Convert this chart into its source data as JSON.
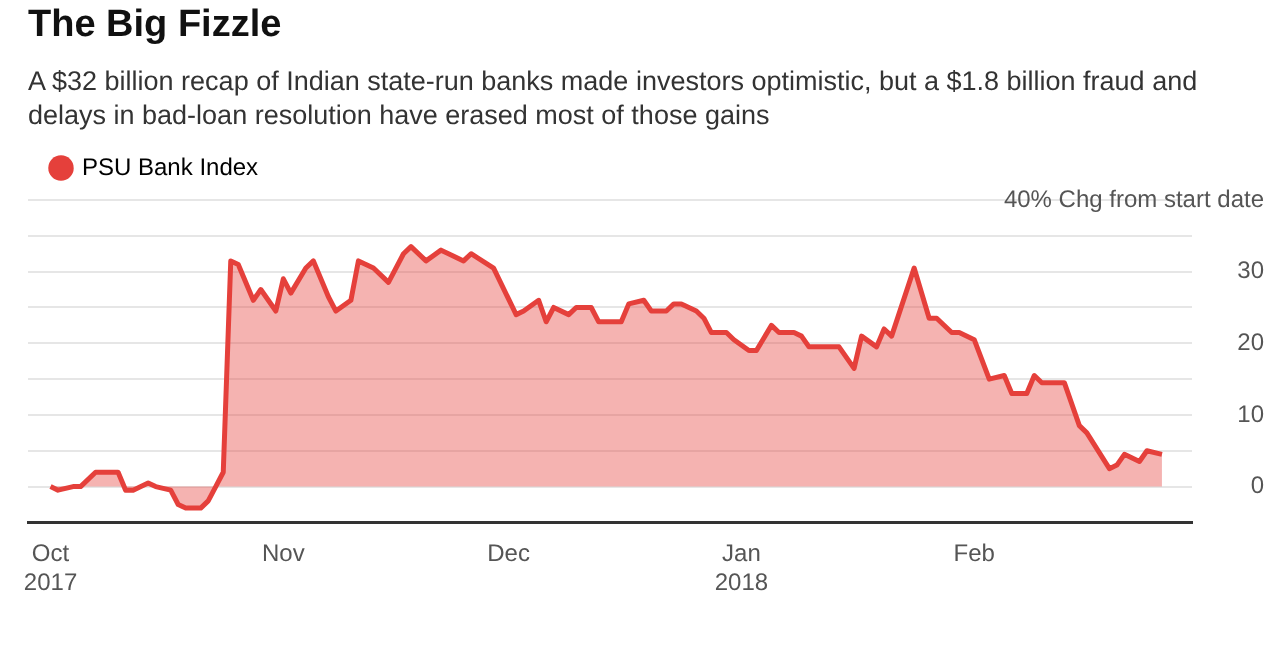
{
  "chart_data": {
    "type": "area",
    "title": "The Big Fizzle",
    "subtitle": "A $32 billion recap of Indian state-run banks made investors optimistic, but a $1.8 billion fraud and delays in bad-loan resolution have erased most of those gains",
    "x": [
      "2017-10-01",
      "2017-10-02",
      "2017-10-04",
      "2017-10-05",
      "2017-10-07",
      "2017-10-10",
      "2017-10-11",
      "2017-10-12",
      "2017-10-14",
      "2017-10-15",
      "2017-10-17",
      "2017-10-18",
      "2017-10-19",
      "2017-10-21",
      "2017-10-22",
      "2017-10-23",
      "2017-10-24",
      "2017-10-25",
      "2017-10-26",
      "2017-10-28",
      "2017-10-29",
      "2017-10-31",
      "2017-11-01",
      "2017-11-02",
      "2017-11-04",
      "2017-11-05",
      "2017-11-07",
      "2017-11-08",
      "2017-11-10",
      "2017-11-11",
      "2017-11-13",
      "2017-11-15",
      "2017-11-17",
      "2017-11-18",
      "2017-11-20",
      "2017-11-22",
      "2017-11-25",
      "2017-11-26",
      "2017-11-29",
      "2017-12-02",
      "2017-12-03",
      "2017-12-05",
      "2017-12-06",
      "2017-12-07",
      "2017-12-09",
      "2017-12-10",
      "2017-12-12",
      "2017-12-13",
      "2017-12-14",
      "2017-12-16",
      "2017-12-17",
      "2017-12-19",
      "2017-12-20",
      "2017-12-22",
      "2017-12-23",
      "2017-12-24",
      "2017-12-26",
      "2017-12-27",
      "2017-12-28",
      "2017-12-30",
      "2017-12-31",
      "2018-01-02",
      "2018-01-03",
      "2018-01-05",
      "2018-01-06",
      "2018-01-08",
      "2018-01-09",
      "2018-01-10",
      "2018-01-12",
      "2018-01-14",
      "2018-01-16",
      "2018-01-17",
      "2018-01-19",
      "2018-01-20",
      "2018-01-21",
      "2018-01-24",
      "2018-01-26",
      "2018-01-27",
      "2018-01-29",
      "2018-01-30",
      "2018-02-01",
      "2018-02-03",
      "2018-02-05",
      "2018-02-06",
      "2018-02-08",
      "2018-02-09",
      "2018-02-10",
      "2018-02-12",
      "2018-02-13",
      "2018-02-15",
      "2018-02-16",
      "2018-02-19",
      "2018-02-20",
      "2018-02-21",
      "2018-02-23",
      "2018-02-24",
      "2018-02-26"
    ],
    "series": [
      {
        "name": "PSU Bank Index",
        "color": "#e5403b",
        "values": [
          0,
          -0.5,
          0,
          0,
          2,
          2,
          -0.5,
          -0.5,
          0.5,
          0,
          -0.5,
          -2.5,
          -3,
          -3,
          -2,
          0,
          2,
          31.5,
          31,
          26,
          27.5,
          24.5,
          29,
          27,
          30.5,
          31.5,
          26.5,
          24.5,
          26,
          31.5,
          30.5,
          28.5,
          32.5,
          33.5,
          31.5,
          33,
          31.5,
          32.5,
          30.5,
          24,
          24.5,
          26,
          23,
          25,
          24,
          25,
          25,
          23,
          23,
          23,
          25.5,
          26,
          24.5,
          24.5,
          25.5,
          25.5,
          24.5,
          23.5,
          21.5,
          21.5,
          20.5,
          19,
          19,
          22.5,
          21.5,
          21.5,
          21,
          19.5,
          19.5,
          19.5,
          16.5,
          21,
          19.5,
          22,
          21,
          30.5,
          23.5,
          23.5,
          21.5,
          21.5,
          20.5,
          15,
          15.5,
          13,
          13,
          15.5,
          14.5,
          14.5,
          14.5,
          8.5,
          7.5,
          2.5,
          3,
          4.5,
          3.5,
          5,
          4.5
        ]
      }
    ],
    "xlim": [
      "2017-09-28",
      "2018-03-02"
    ],
    "xticks": [
      {
        "value": "2017-10-01",
        "label": "Oct 2017"
      },
      {
        "value": "2017-11-01",
        "label": "Nov"
      },
      {
        "value": "2017-12-01",
        "label": "Dec"
      },
      {
        "value": "2018-01-01",
        "label": "Jan 2018"
      },
      {
        "value": "2018-02-01",
        "label": "Feb"
      }
    ],
    "ylim": [
      -5,
      40
    ],
    "yticks": [
      0,
      {
        "value": 5,
        "label": null
      },
      10,
      {
        "value": 15,
        "label": null
      },
      20,
      {
        "value": 25,
        "label": null
      },
      30,
      {
        "value": 35,
        "label": null
      },
      {
        "value": 40,
        "label": "40% Chg from start date"
      }
    ],
    "grid": "y",
    "legend": "top left",
    "marker": "none",
    "line_style": "solid"
  }
}
